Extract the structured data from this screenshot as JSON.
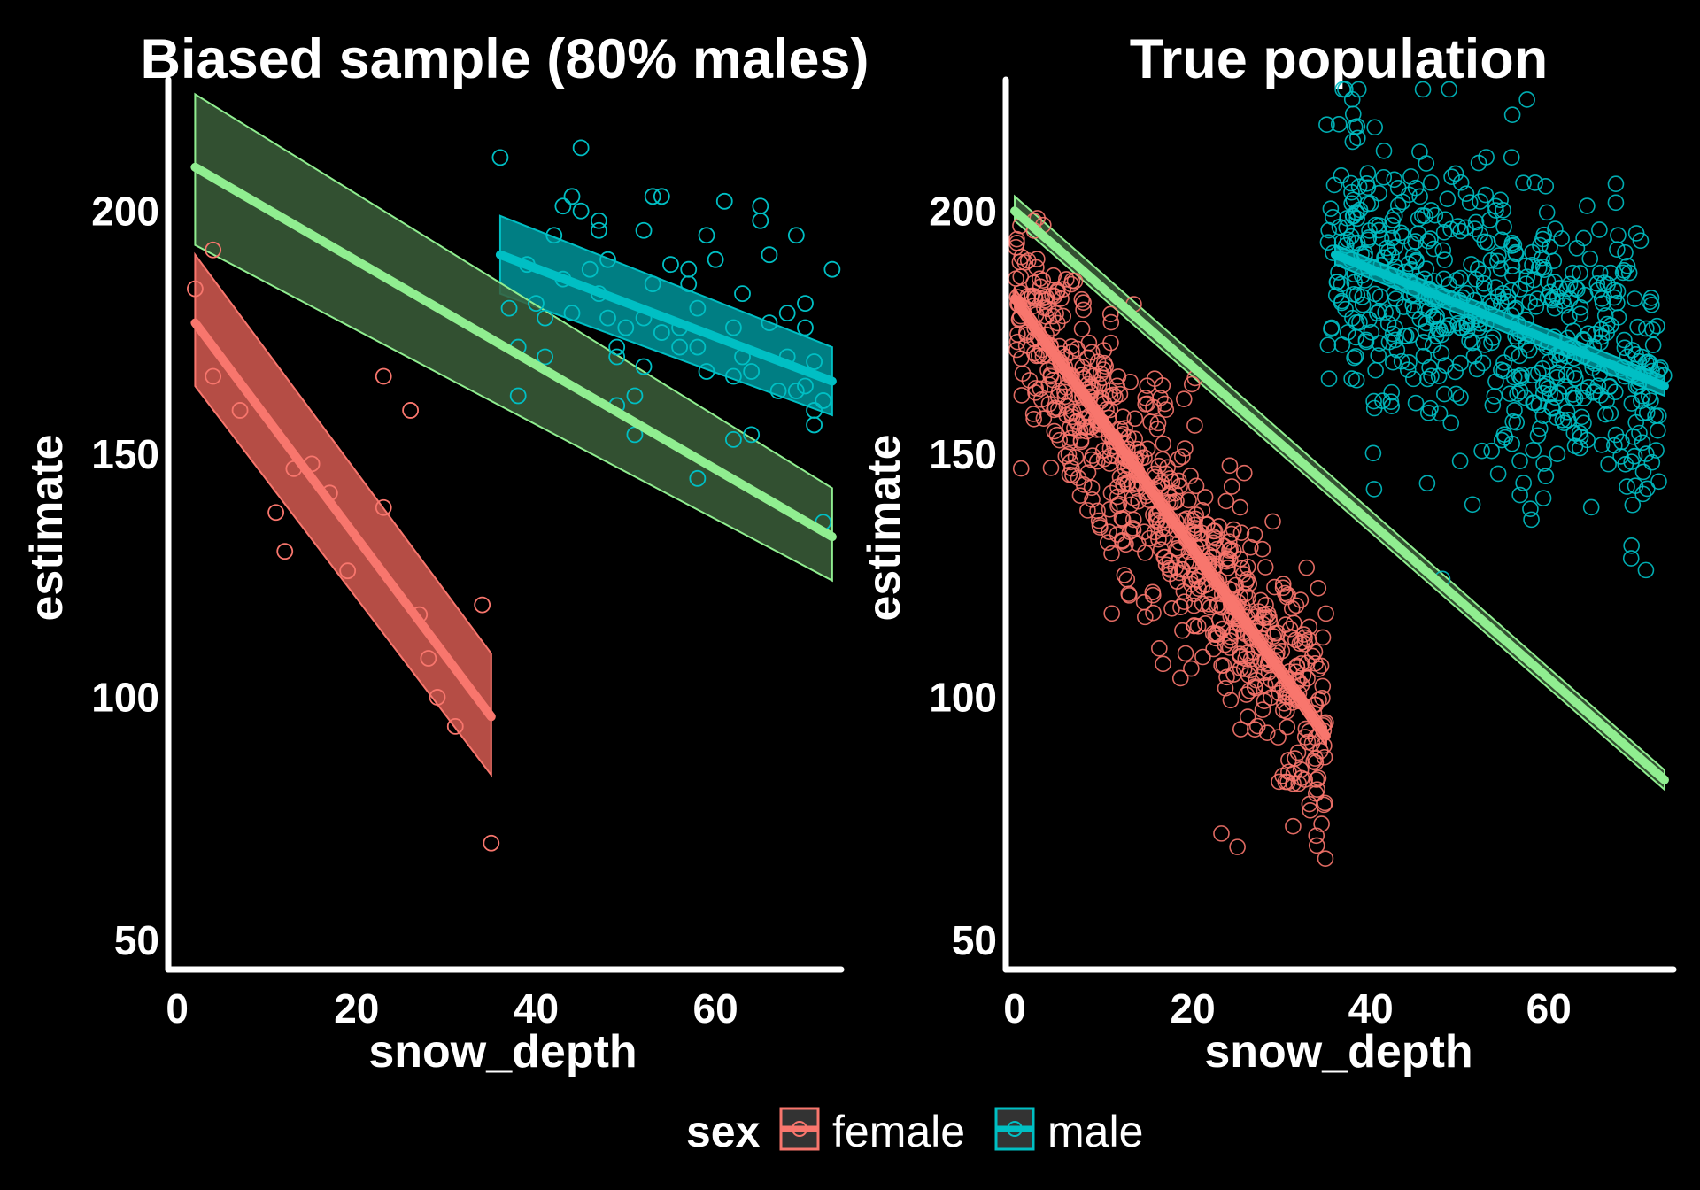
{
  "legend": {
    "title": "sex",
    "items": [
      {
        "label": "female",
        "color": "#F8766D"
      },
      {
        "label": "male",
        "color": "#00BFC4"
      }
    ]
  },
  "colors": {
    "female": "#F8766D",
    "male": "#00BFC4",
    "pooled": "#90EE90",
    "pooled_band": "#3B5E3A",
    "axis": "#FFFFFF",
    "background": "#000000"
  },
  "chart_data": [
    {
      "type": "scatter",
      "title": "Biased sample (80% males)",
      "xlabel": "snow_depth",
      "ylabel": "estimate",
      "xlim": [
        -1,
        74
      ],
      "ylim": [
        44,
        227
      ],
      "xticks": [
        0,
        20,
        40,
        60
      ],
      "yticks": [
        50,
        100,
        150,
        200
      ],
      "grid": false,
      "series": [
        {
          "name": "female",
          "points": [
            [
              2,
              184
            ],
            [
              4,
              192
            ],
            [
              4,
              166
            ],
            [
              7,
              159
            ],
            [
              11,
              138
            ],
            [
              12,
              130
            ],
            [
              13,
              147
            ],
            [
              15,
              148
            ],
            [
              17,
              142
            ],
            [
              19,
              126
            ],
            [
              23,
              166
            ],
            [
              23,
              139
            ],
            [
              26,
              159
            ],
            [
              27,
              117
            ],
            [
              28,
              108
            ],
            [
              29,
              100
            ],
            [
              31,
              94
            ],
            [
              34,
              119
            ],
            [
              35,
              70
            ]
          ]
        },
        {
          "name": "male",
          "points": [
            [
              36,
              211
            ],
            [
              37,
              180
            ],
            [
              38,
              172
            ],
            [
              38,
              162
            ],
            [
              39,
              189
            ],
            [
              40,
              181
            ],
            [
              41,
              178
            ],
            [
              41,
              170
            ],
            [
              42,
              195
            ],
            [
              43,
              201
            ],
            [
              43,
              186
            ],
            [
              44,
              179
            ],
            [
              44,
              203
            ],
            [
              45,
              213
            ],
            [
              45,
              200
            ],
            [
              46,
              188
            ],
            [
              47,
              183
            ],
            [
              47,
              196
            ],
            [
              47,
              198
            ],
            [
              48,
              178
            ],
            [
              48,
              190
            ],
            [
              49,
              172
            ],
            [
              49,
              170
            ],
            [
              49,
              160
            ],
            [
              50,
              176
            ],
            [
              51,
              154
            ],
            [
              51,
              162
            ],
            [
              52,
              196
            ],
            [
              52,
              178
            ],
            [
              52,
              168
            ],
            [
              53,
              203
            ],
            [
              53,
              185
            ],
            [
              54,
              203
            ],
            [
              54,
              175
            ],
            [
              55,
              189
            ],
            [
              56,
              176
            ],
            [
              56,
              172
            ],
            [
              57,
              185
            ],
            [
              57,
              188
            ],
            [
              58,
              172
            ],
            [
              58,
              180
            ],
            [
              58,
              145
            ],
            [
              59,
              167
            ],
            [
              59,
              195
            ],
            [
              60,
              190
            ],
            [
              61,
              202
            ],
            [
              62,
              176
            ],
            [
              62,
              153
            ],
            [
              62,
              166
            ],
            [
              63,
              170
            ],
            [
              63,
              183
            ],
            [
              64,
              154
            ],
            [
              64,
              167
            ],
            [
              65,
              201
            ],
            [
              65,
              198
            ],
            [
              66,
              191
            ],
            [
              66,
              177
            ],
            [
              67,
              163
            ],
            [
              68,
              179
            ],
            [
              68,
              170
            ],
            [
              69,
              163
            ],
            [
              69,
              195
            ],
            [
              70,
              181
            ],
            [
              70,
              176
            ],
            [
              70,
              164
            ],
            [
              71,
              169
            ],
            [
              71,
              159
            ],
            [
              71,
              156
            ],
            [
              72,
              161
            ],
            [
              72,
              136
            ],
            [
              73,
              188
            ]
          ]
        }
      ],
      "fits": [
        {
          "name": "female",
          "x": [
            2,
            35
          ],
          "y": [
            177,
            96
          ],
          "lower": [
            164,
            84
          ],
          "upper": [
            191,
            109
          ]
        },
        {
          "name": "male",
          "x": [
            36,
            73
          ],
          "y": [
            191,
            165
          ],
          "lower": [
            183,
            158
          ],
          "upper": [
            199,
            172
          ]
        },
        {
          "name": "pooled",
          "x": [
            2,
            73
          ],
          "y": [
            209,
            133
          ],
          "lower": [
            193,
            124
          ],
          "upper": [
            224,
            143
          ]
        }
      ]
    },
    {
      "type": "scatter",
      "title": "True population",
      "xlabel": "snow_depth",
      "ylabel": "estimate",
      "xlim": [
        -1,
        74
      ],
      "ylim": [
        44,
        227
      ],
      "xticks": [
        0,
        20,
        40,
        60
      ],
      "yticks": [
        50,
        100,
        150,
        200
      ],
      "grid": false,
      "series": [
        {
          "name": "female",
          "generated_n": 700,
          "x_range": [
            0,
            35
          ],
          "note": "cloud of points around fitted line, spread ~12"
        },
        {
          "name": "male",
          "generated_n": 600,
          "x_range": [
            35,
            73
          ],
          "note": "cloud of points around fitted line, spread ~15"
        }
      ],
      "fits": [
        {
          "name": "female",
          "x": [
            0,
            35
          ],
          "y": [
            182,
            92
          ],
          "lower": [
            180,
            90
          ],
          "upper": [
            184,
            94
          ]
        },
        {
          "name": "male",
          "x": [
            36,
            73
          ],
          "y": [
            191,
            164
          ],
          "lower": [
            189,
            162
          ],
          "upper": [
            193,
            166
          ]
        },
        {
          "name": "pooled",
          "x": [
            0,
            73
          ],
          "y": [
            200,
            83
          ],
          "lower": [
            198,
            81
          ],
          "upper": [
            203,
            85
          ]
        }
      ]
    }
  ]
}
